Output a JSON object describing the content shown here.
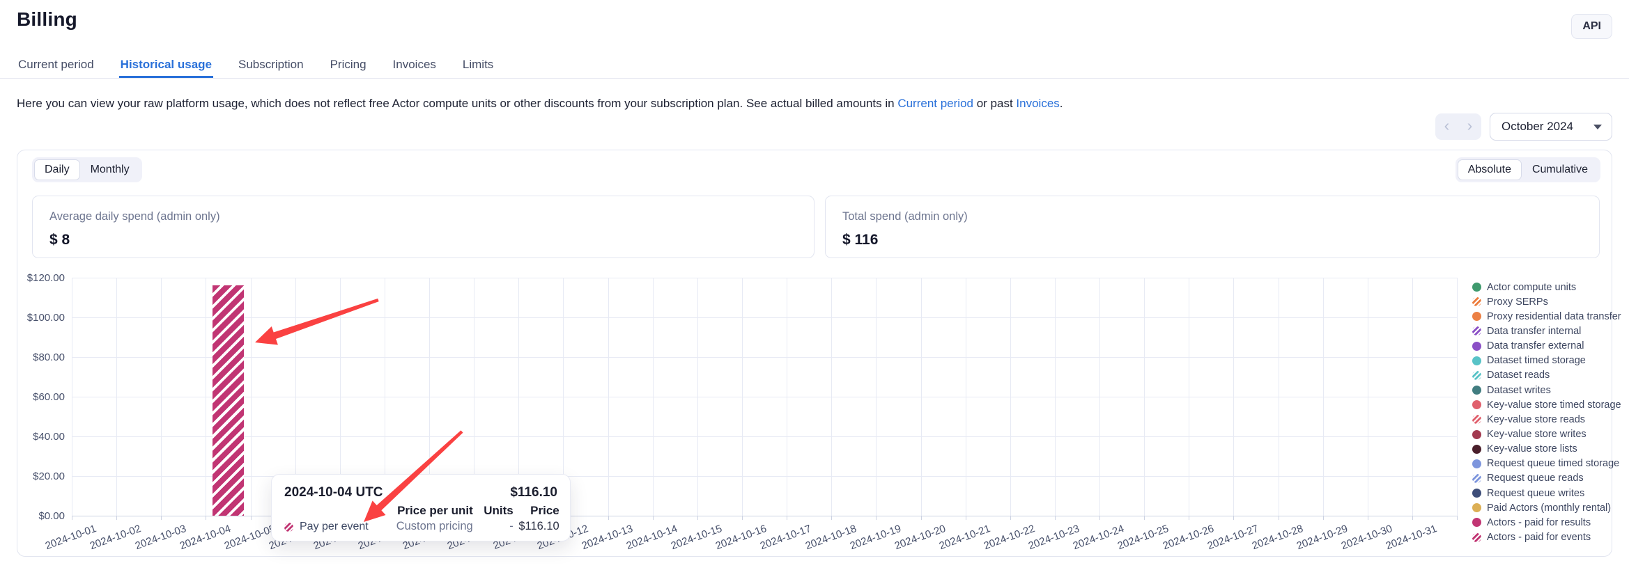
{
  "header": {
    "title": "Billing",
    "api_button": "API"
  },
  "tabs": {
    "items": [
      {
        "label": "Current period",
        "active": false
      },
      {
        "label": "Historical usage",
        "active": true
      },
      {
        "label": "Subscription",
        "active": false
      },
      {
        "label": "Pricing",
        "active": false
      },
      {
        "label": "Invoices",
        "active": false
      },
      {
        "label": "Limits",
        "active": false
      }
    ]
  },
  "description": {
    "before": "Here you can view your raw platform usage, which does not reflect free Actor compute units or other discounts from your subscription plan. See actual billed amounts in ",
    "link1": "Current period",
    "middle": " or past ",
    "link2": "Invoices",
    "after": "."
  },
  "period_nav": {
    "prev_icon": "‹",
    "next_icon": "›",
    "selected_month": "October 2024"
  },
  "view_toggles": {
    "granularity": {
      "options": [
        "Daily",
        "Monthly"
      ],
      "selected": "Daily"
    },
    "mode": {
      "options": [
        "Absolute",
        "Cumulative"
      ],
      "selected": "Absolute"
    }
  },
  "stats": [
    {
      "label": "Average daily spend (admin only)",
      "value": "$ 8"
    },
    {
      "label": "Total spend (admin only)",
      "value": "$ 116"
    }
  ],
  "chart_data": {
    "type": "bar",
    "x": [
      "2024-10-01",
      "2024-10-02",
      "2024-10-03",
      "2024-10-04",
      "2024-10-05",
      "2024-10-06",
      "2024-10-07",
      "2024-10-08",
      "2024-10-09",
      "2024-10-10",
      "2024-10-11",
      "2024-10-12",
      "2024-10-13",
      "2024-10-14",
      "2024-10-15",
      "2024-10-16",
      "2024-10-17",
      "2024-10-18",
      "2024-10-19",
      "2024-10-20",
      "2024-10-21",
      "2024-10-22",
      "2024-10-23",
      "2024-10-24",
      "2024-10-25",
      "2024-10-26",
      "2024-10-27",
      "2024-10-28",
      "2024-10-29",
      "2024-10-30",
      "2024-10-31"
    ],
    "series": [
      {
        "name": "Pay per event",
        "color": "#c13573",
        "striped": true,
        "values": [
          0,
          0,
          0,
          116.1,
          0,
          0,
          0,
          0,
          0,
          0,
          0,
          0,
          0,
          0,
          0,
          0,
          0,
          0,
          0,
          0,
          0,
          0,
          0,
          0,
          0,
          0,
          0,
          0,
          0,
          0,
          0
        ]
      }
    ],
    "ylim": [
      0,
      120
    ],
    "ytick_step": 20,
    "ytick_labels": [
      "$0.00",
      "$20.00",
      "$40.00",
      "$60.00",
      "$80.00",
      "$100.00",
      "$120.00"
    ],
    "grid": true,
    "legend_position": "right",
    "legend": [
      {
        "label": "Actor compute units",
        "color": "#3f9a6e",
        "striped": false
      },
      {
        "label": "Proxy SERPs",
        "color": "#ec7d3e",
        "striped": true
      },
      {
        "label": "Proxy residential data transfer",
        "color": "#ec8044",
        "striped": false
      },
      {
        "label": "Data transfer internal",
        "color": "#8b50c6",
        "striped": true
      },
      {
        "label": "Data transfer external",
        "color": "#8b50c6",
        "striped": false
      },
      {
        "label": "Dataset timed storage",
        "color": "#58c3c7",
        "striped": false
      },
      {
        "label": "Dataset reads",
        "color": "#58c3c7",
        "striped": true
      },
      {
        "label": "Dataset writes",
        "color": "#417d80",
        "striped": false
      },
      {
        "label": "Key-value store timed storage",
        "color": "#e0606d",
        "striped": false
      },
      {
        "label": "Key-value store reads",
        "color": "#e0606d",
        "striped": true
      },
      {
        "label": "Key-value store writes",
        "color": "#a23a50",
        "striped": false
      },
      {
        "label": "Key-value store lists",
        "color": "#4a1f2b",
        "striped": false
      },
      {
        "label": "Request queue timed storage",
        "color": "#7e96dd",
        "striped": false
      },
      {
        "label": "Request queue reads",
        "color": "#7e96dd",
        "striped": true
      },
      {
        "label": "Request queue writes",
        "color": "#3e4e79",
        "striped": false
      },
      {
        "label": "Paid Actors (monthly rental)",
        "color": "#dcaf55",
        "striped": false
      },
      {
        "label": "Actors - paid for results",
        "color": "#c13573",
        "striped": false
      },
      {
        "label": "Actors - paid for events",
        "color": "#c13573",
        "striped": true
      }
    ]
  },
  "tooltip": {
    "date": "2024-10-04 UTC",
    "total": "$116.10",
    "columns": [
      "Price per unit",
      "Units",
      "Price"
    ],
    "rows": [
      {
        "name": "Pay per event",
        "color": "#c13573",
        "striped": true,
        "price_per_unit": "Custom pricing",
        "units": "-",
        "price": "$116.10"
      }
    ]
  },
  "annotations": {
    "color": "#fa4141",
    "arrows": [
      {
        "from": [
          543,
          431
        ],
        "to": [
          366,
          492
        ]
      },
      {
        "from": [
          663,
          620
        ],
        "to": [
          522,
          750
        ]
      }
    ]
  }
}
